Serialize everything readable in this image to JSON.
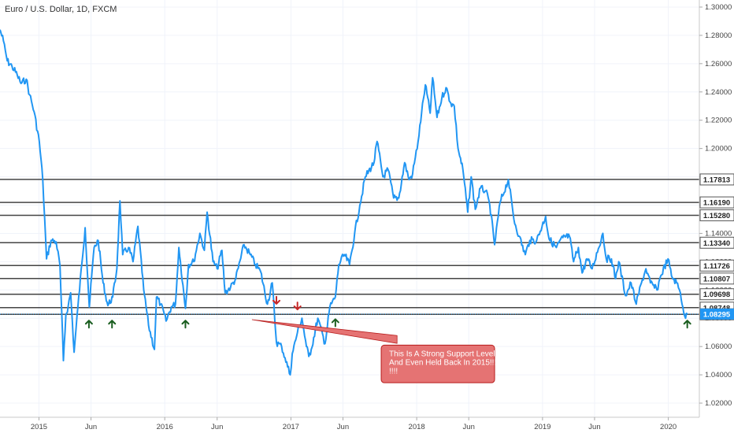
{
  "chart_data": {
    "type": "line",
    "title": "Euro / U.S. Dollar, 1D, FXCM",
    "x_ticks": [
      "2015",
      "Jun",
      "2016",
      "Jun",
      "2017",
      "Jun",
      "2018",
      "Jun",
      "2019",
      "Jun",
      "2020"
    ],
    "x_tick_dates": [
      "2015-01-01",
      "2015-06-01",
      "2016-01-01",
      "2016-06-01",
      "2017-01-01",
      "2017-06-01",
      "2018-01-01",
      "2018-06-01",
      "2019-01-01",
      "2019-06-01",
      "2020-01-01"
    ],
    "x_range": [
      "2014-09-10",
      "2020-03-31"
    ],
    "y_ticks": [
      "1.30000",
      "1.28000",
      "1.26000",
      "1.24000",
      "1.22000",
      "1.20000",
      "1.18000",
      "1.16000",
      "1.14000",
      "1.12000",
      "1.10000",
      "1.08000",
      "1.06000",
      "1.04000",
      "1.02000"
    ],
    "ylim": [
      1.01,
      1.305
    ],
    "series": [
      {
        "color": "#2196f3",
        "points": [
          [
            "2014-09-10",
            1.284
          ],
          [
            "2014-09-20",
            1.276
          ],
          [
            "2014-10-01",
            1.262
          ],
          [
            "2014-10-15",
            1.258
          ],
          [
            "2014-10-30",
            1.252
          ],
          [
            "2014-11-10",
            1.246
          ],
          [
            "2014-11-25",
            1.249
          ],
          [
            "2014-12-05",
            1.238
          ],
          [
            "2014-12-18",
            1.226
          ],
          [
            "2015-01-02",
            1.205
          ],
          [
            "2015-01-12",
            1.178
          ],
          [
            "2015-01-23",
            1.122
          ],
          [
            "2015-02-05",
            1.135
          ],
          [
            "2015-02-20",
            1.134
          ],
          [
            "2015-03-03",
            1.117
          ],
          [
            "2015-03-13",
            1.05
          ],
          [
            "2015-03-20",
            1.082
          ],
          [
            "2015-03-27",
            1.089
          ],
          [
            "2015-04-03",
            1.098
          ],
          [
            "2015-04-13",
            1.056
          ],
          [
            "2015-04-24",
            1.088
          ],
          [
            "2015-05-06",
            1.12
          ],
          [
            "2015-05-15",
            1.144
          ],
          [
            "2015-05-27",
            1.088
          ],
          [
            "2015-06-10",
            1.13
          ],
          [
            "2015-06-22",
            1.135
          ],
          [
            "2015-07-06",
            1.105
          ],
          [
            "2015-07-20",
            1.089
          ],
          [
            "2015-08-03",
            1.095
          ],
          [
            "2015-08-15",
            1.115
          ],
          [
            "2015-08-24",
            1.163
          ],
          [
            "2015-09-01",
            1.125
          ],
          [
            "2015-09-18",
            1.13
          ],
          [
            "2015-10-01",
            1.12
          ],
          [
            "2015-10-15",
            1.145
          ],
          [
            "2015-11-01",
            1.1
          ],
          [
            "2015-11-15",
            1.075
          ],
          [
            "2015-12-02",
            1.058
          ],
          [
            "2015-12-08",
            1.095
          ],
          [
            "2015-12-20",
            1.09
          ],
          [
            "2016-01-05",
            1.078
          ],
          [
            "2016-01-20",
            1.088
          ],
          [
            "2016-02-01",
            1.09
          ],
          [
            "2016-02-11",
            1.13
          ],
          [
            "2016-03-01",
            1.087
          ],
          [
            "2016-03-10",
            1.118
          ],
          [
            "2016-03-25",
            1.12
          ],
          [
            "2016-04-12",
            1.14
          ],
          [
            "2016-04-25",
            1.128
          ],
          [
            "2016-05-03",
            1.155
          ],
          [
            "2016-05-20",
            1.12
          ],
          [
            "2016-06-01",
            1.115
          ],
          [
            "2016-06-15",
            1.128
          ],
          [
            "2016-06-24",
            1.098
          ],
          [
            "2016-07-10",
            1.102
          ],
          [
            "2016-07-25",
            1.108
          ],
          [
            "2016-08-18",
            1.132
          ],
          [
            "2016-09-05",
            1.125
          ],
          [
            "2016-09-20",
            1.118
          ],
          [
            "2016-10-05",
            1.113
          ],
          [
            "2016-10-25",
            1.09
          ],
          [
            "2016-11-08",
            1.105
          ],
          [
            "2016-11-20",
            1.063
          ],
          [
            "2016-12-05",
            1.06
          ],
          [
            "2016-12-15",
            1.052
          ],
          [
            "2016-12-30",
            1.04
          ],
          [
            "2017-01-05",
            1.055
          ],
          [
            "2017-01-20",
            1.07
          ],
          [
            "2017-02-02",
            1.08
          ],
          [
            "2017-02-15",
            1.06
          ],
          [
            "2017-02-22",
            1.053
          ],
          [
            "2017-03-01",
            1.058
          ],
          [
            "2017-03-20",
            1.08
          ],
          [
            "2017-04-10",
            1.062
          ],
          [
            "2017-04-24",
            1.088
          ],
          [
            "2017-05-10",
            1.095
          ],
          [
            "2017-05-20",
            1.118
          ],
          [
            "2017-06-05",
            1.125
          ],
          [
            "2017-06-20",
            1.118
          ],
          [
            "2017-07-05",
            1.14
          ],
          [
            "2017-07-20",
            1.16
          ],
          [
            "2017-08-05",
            1.18
          ],
          [
            "2017-08-30",
            1.19
          ],
          [
            "2017-09-08",
            1.205
          ],
          [
            "2017-09-25",
            1.18
          ],
          [
            "2017-10-10",
            1.185
          ],
          [
            "2017-10-26",
            1.165
          ],
          [
            "2017-11-10",
            1.165
          ],
          [
            "2017-11-27",
            1.19
          ],
          [
            "2017-12-10",
            1.178
          ],
          [
            "2017-12-20",
            1.182
          ],
          [
            "2018-01-05",
            1.205
          ],
          [
            "2018-01-15",
            1.225
          ],
          [
            "2018-01-26",
            1.245
          ],
          [
            "2018-02-09",
            1.225
          ],
          [
            "2018-02-16",
            1.25
          ],
          [
            "2018-03-01",
            1.222
          ],
          [
            "2018-03-15",
            1.236
          ],
          [
            "2018-03-27",
            1.243
          ],
          [
            "2018-04-10",
            1.232
          ],
          [
            "2018-04-20",
            1.23
          ],
          [
            "2018-05-01",
            1.2
          ],
          [
            "2018-05-15",
            1.185
          ],
          [
            "2018-05-29",
            1.155
          ],
          [
            "2018-06-08",
            1.18
          ],
          [
            "2018-06-20",
            1.157
          ],
          [
            "2018-07-05",
            1.172
          ],
          [
            "2018-07-20",
            1.17
          ],
          [
            "2018-08-01",
            1.16
          ],
          [
            "2018-08-15",
            1.132
          ],
          [
            "2018-08-31",
            1.162
          ],
          [
            "2018-09-24",
            1.178
          ],
          [
            "2018-10-10",
            1.15
          ],
          [
            "2018-10-25",
            1.138
          ],
          [
            "2018-11-12",
            1.125
          ],
          [
            "2018-11-25",
            1.135
          ],
          [
            "2018-12-15",
            1.135
          ],
          [
            "2019-01-10",
            1.152
          ],
          [
            "2019-01-20",
            1.136
          ],
          [
            "2019-02-10",
            1.13
          ],
          [
            "2019-03-01",
            1.137
          ],
          [
            "2019-03-20",
            1.138
          ],
          [
            "2019-04-01",
            1.12
          ],
          [
            "2019-04-15",
            1.13
          ],
          [
            "2019-04-26",
            1.112
          ],
          [
            "2019-05-10",
            1.122
          ],
          [
            "2019-05-25",
            1.115
          ],
          [
            "2019-06-25",
            1.14
          ],
          [
            "2019-07-05",
            1.122
          ],
          [
            "2019-07-20",
            1.122
          ],
          [
            "2019-08-01",
            1.108
          ],
          [
            "2019-08-10",
            1.12
          ],
          [
            "2019-08-30",
            1.096
          ],
          [
            "2019-09-15",
            1.105
          ],
          [
            "2019-09-30",
            1.09
          ],
          [
            "2019-10-15",
            1.105
          ],
          [
            "2019-10-28",
            1.115
          ],
          [
            "2019-11-10",
            1.105
          ],
          [
            "2019-11-29",
            1.1
          ],
          [
            "2019-12-10",
            1.11
          ],
          [
            "2019-12-31",
            1.122
          ],
          [
            "2020-01-10",
            1.11
          ],
          [
            "2020-01-25",
            1.105
          ],
          [
            "2020-02-05",
            1.098
          ],
          [
            "2020-02-12",
            1.088
          ],
          [
            "2020-02-20",
            1.08
          ],
          [
            "2020-02-25",
            1.08295
          ]
        ]
      }
    ],
    "levels": [
      {
        "label": "1.17813",
        "value": 1.17813
      },
      {
        "label": "1.16190",
        "value": 1.1619
      },
      {
        "label": "1.15280",
        "value": 1.1528
      },
      {
        "label": "1.13340",
        "value": 1.1334
      },
      {
        "label": "1.11726",
        "value": 1.11726
      },
      {
        "label": "1.10807",
        "value": 1.10807
      },
      {
        "label": "1.09698",
        "value": 1.09698
      },
      {
        "label": "1.08748",
        "value": 1.08748
      },
      {
        "label": "1.08280",
        "value": 1.0828
      }
    ],
    "current_price": {
      "label": "1.08295",
      "value": 1.08295,
      "color": "#2196f3"
    },
    "up_arrows": [
      {
        "date": "2015-05-26",
        "value": 1.08
      },
      {
        "date": "2015-08-01",
        "value": 1.08
      },
      {
        "date": "2016-03-01",
        "value": 1.08
      },
      {
        "date": "2017-05-10",
        "value": 1.081
      },
      {
        "date": "2020-02-25",
        "value": 1.08
      }
    ],
    "down_arrows": [
      {
        "date": "2016-11-20",
        "value": 1.093
      },
      {
        "date": "2017-01-20",
        "value": 1.089
      }
    ],
    "annotation": {
      "lines": [
        "This Is A Strong Support Level",
        "And Even Held Back In 2015!!!!",
        "!!!!"
      ],
      "from": {
        "date": "2016-09-10",
        "value": 1.079
      },
      "to": {
        "date": "2017-11-05",
        "value": 1.065
      },
      "box": {
        "date": "2017-09-20",
        "value": 1.061,
        "date_end": "2018-08-15",
        "value_end": 1.05
      },
      "color": "#e57373"
    },
    "grid": true,
    "up_arrow_color": "#1b5e20",
    "down_arrow_color": "#c62828"
  }
}
